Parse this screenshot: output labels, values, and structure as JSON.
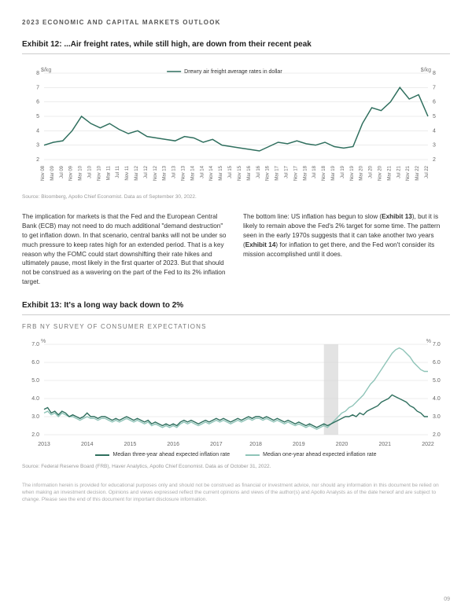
{
  "header": "2023 ECONOMIC AND CAPITAL MARKETS OUTLOOK",
  "exhibit12": {
    "title": "Exhibit 12: ...Air freight rates, while still high, are down from their recent peak",
    "legend_label": "Drewry air freight average rates in dollar",
    "y_unit": "$/kg",
    "ylim": [
      2,
      8
    ],
    "ytick_step": 1,
    "x_labels": [
      "Nov 08",
      "Mar 09",
      "Jul 09",
      "Nov 09",
      "Mar 10",
      "Jul 10",
      "Nov 10",
      "Mar 11",
      "Jul 11",
      "Nov 11",
      "Mar 12",
      "Jul 12",
      "Nov 12",
      "Mar 13",
      "Jul 13",
      "Nov 13",
      "Mar 14",
      "Jul 14",
      "Nov 14",
      "Mar 15",
      "Jul 15",
      "Nov 15",
      "Mar 16",
      "Jul 16",
      "Nov 16",
      "Mar 17",
      "Jul 17",
      "Nov 17",
      "Mar 18",
      "Jul 18",
      "Nov 18",
      "Mar 19",
      "Jul 19",
      "Nov 19",
      "Mar 20",
      "Jul 20",
      "Nov 20",
      "Mar 21",
      "Jul 21",
      "Nov 21",
      "Mar 22",
      "Jul 22"
    ],
    "series": [
      3.0,
      3.2,
      3.3,
      4.0,
      5.0,
      4.5,
      4.2,
      4.5,
      4.1,
      3.8,
      4.0,
      3.6,
      3.5,
      3.4,
      3.3,
      3.6,
      3.5,
      3.2,
      3.4,
      3.0,
      2.9,
      2.8,
      2.7,
      2.6,
      2.9,
      3.2,
      3.1,
      3.3,
      3.1,
      3.0,
      3.2,
      2.9,
      2.8,
      2.9,
      4.5,
      5.6,
      5.4,
      6.0,
      7.0,
      6.2,
      6.5,
      5.0
    ],
    "line_color": "#2f6f5e",
    "grid_color": "#d8d8d8",
    "axis_color": "#999999",
    "label_fontsize": 7,
    "source": "Source: Bloomberg, Apollo Chief Economist. Data as of September 30, 2022."
  },
  "body": {
    "left": "The implication for markets is that the Fed and the European Central Bank (ECB) may not need to do much additional \"demand destruction\" to get inflation down. In that scenario, central banks will not be under so much pressure to keep rates high for an extended period. That is a key reason why the FOMC could start downshifting their rate hikes and ultimately pause, most likely in the first quarter of 2023. But that should not be construed as a wavering on the part of the Fed to its 2% inflation target.",
    "right_prefix": "The bottom line: US inflation has begun to slow (",
    "right_bold1": "Exhibit 13",
    "right_mid": "), but it is likely to remain above the Fed's 2% target for some time. The pattern seen in the early 1970s suggests that it can take another two years (",
    "right_bold2": "Exhibit 14",
    "right_suffix": ") for inflation to get there, and the Fed won't consider its mission accomplished until it does."
  },
  "exhibit13": {
    "title": "Exhibit 13: It's a long way back down to 2%",
    "subhead": "FRB NY SURVEY OF CONSUMER EXPECTATIONS",
    "y_unit": "%",
    "ylim": [
      2.0,
      7.0
    ],
    "ytick_step": 1.0,
    "x_labels": [
      "2013",
      "2014",
      "2015",
      "2016",
      "2017",
      "2018",
      "2019",
      "2020",
      "2021",
      "2022"
    ],
    "shade_start_index": 78,
    "shade_end_index": 82,
    "series_a": {
      "label": "Median three-year ahead expected inflation rate",
      "color": "#2f6f5e",
      "values": [
        3.4,
        3.5,
        3.2,
        3.3,
        3.1,
        3.3,
        3.2,
        3.0,
        3.1,
        3.0,
        2.9,
        3.0,
        3.2,
        3.0,
        3.0,
        2.9,
        3.0,
        3.0,
        2.9,
        2.8,
        2.9,
        2.8,
        2.9,
        3.0,
        2.9,
        2.8,
        2.9,
        2.8,
        2.7,
        2.8,
        2.6,
        2.7,
        2.6,
        2.5,
        2.6,
        2.5,
        2.6,
        2.5,
        2.7,
        2.8,
        2.7,
        2.8,
        2.7,
        2.6,
        2.7,
        2.8,
        2.7,
        2.8,
        2.9,
        2.8,
        2.9,
        2.8,
        2.7,
        2.8,
        2.9,
        2.8,
        2.9,
        3.0,
        2.9,
        3.0,
        3.0,
        2.9,
        3.0,
        2.9,
        2.8,
        2.9,
        2.8,
        2.7,
        2.8,
        2.7,
        2.6,
        2.7,
        2.6,
        2.5,
        2.6,
        2.5,
        2.4,
        2.5,
        2.6,
        2.5,
        2.6,
        2.7,
        2.8,
        2.9,
        3.0,
        3.0,
        3.1,
        3.0,
        3.2,
        3.1,
        3.3,
        3.4,
        3.5,
        3.6,
        3.8,
        3.9,
        4.0,
        4.2,
        4.1,
        4.0,
        3.9,
        3.8,
        3.6,
        3.5,
        3.3,
        3.2,
        3.0,
        3.0
      ]
    },
    "series_b": {
      "label": "Median one-year ahead expected inflation rate",
      "color": "#8fc4b8",
      "values": [
        3.2,
        3.3,
        3.1,
        3.2,
        3.0,
        3.2,
        3.1,
        3.0,
        3.0,
        2.9,
        2.8,
        2.9,
        3.0,
        2.9,
        2.9,
        2.8,
        2.9,
        2.9,
        2.8,
        2.7,
        2.8,
        2.7,
        2.8,
        2.9,
        2.8,
        2.7,
        2.8,
        2.7,
        2.6,
        2.7,
        2.5,
        2.6,
        2.5,
        2.4,
        2.5,
        2.4,
        2.5,
        2.4,
        2.6,
        2.7,
        2.6,
        2.7,
        2.6,
        2.5,
        2.6,
        2.7,
        2.6,
        2.7,
        2.8,
        2.7,
        2.8,
        2.7,
        2.6,
        2.7,
        2.8,
        2.7,
        2.8,
        2.9,
        2.8,
        2.9,
        2.9,
        2.8,
        2.9,
        2.8,
        2.7,
        2.8,
        2.7,
        2.6,
        2.7,
        2.6,
        2.5,
        2.6,
        2.5,
        2.4,
        2.5,
        2.4,
        2.3,
        2.4,
        2.5,
        2.4,
        2.6,
        2.8,
        3.0,
        3.2,
        3.3,
        3.5,
        3.6,
        3.8,
        4.0,
        4.2,
        4.5,
        4.8,
        5.0,
        5.3,
        5.6,
        5.9,
        6.2,
        6.5,
        6.7,
        6.8,
        6.7,
        6.5,
        6.3,
        6.0,
        5.8,
        5.6,
        5.5,
        5.5
      ]
    },
    "grid_color": "#d8d8d8",
    "shade_color": "#c8c8c8",
    "source": "Source: Federal Reserve Board (FRB), Haver Analytics, Apollo Chief Economist. Data as of October 31, 2022."
  },
  "disclaimer": "The information herein is provided for educational purposes only and should not be construed as financial or investment advice, nor should any information in this document be relied on when making an investment decision. Opinions and views expressed reflect the current opinions and views of the author(s) and Apollo Analysts as of the date hereof and are subject to change. Please see the end of this document for important disclosure information.",
  "page_number": "09"
}
